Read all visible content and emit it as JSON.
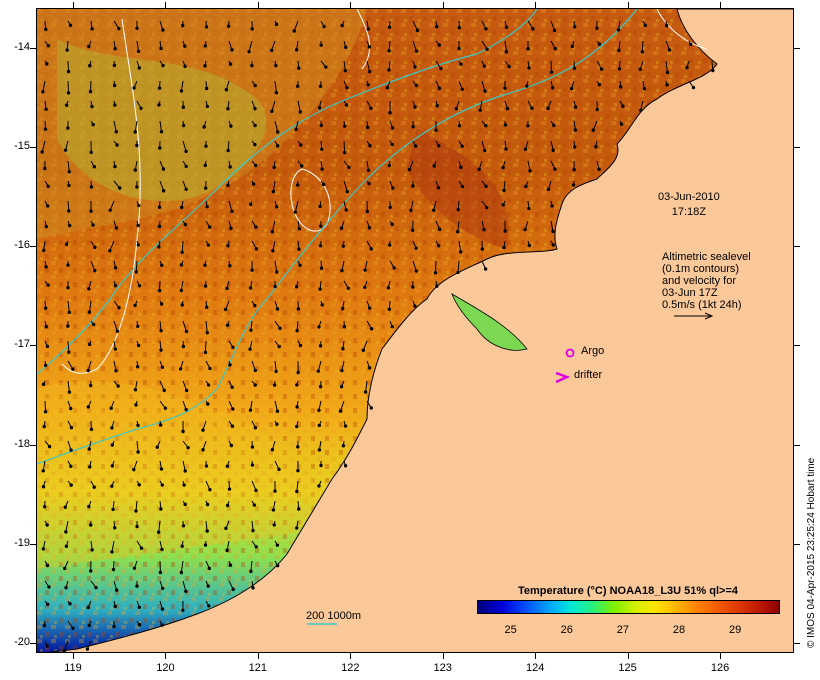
{
  "map": {
    "lat_ticks": [
      "-14",
      "-15",
      "-16",
      "-17",
      "-18",
      "-19",
      "-20"
    ],
    "lon_ticks": [
      "119",
      "120",
      "121",
      "122",
      "123",
      "124",
      "125",
      "126"
    ],
    "lat_range": [
      -20.1,
      -13.6
    ],
    "lon_range": [
      118.6,
      126.8
    ],
    "land_color": "#fbc89a",
    "contour_color": "#ffffff",
    "isobath_color": "#3cc8c8"
  },
  "annotations": {
    "date_line1": "03-Jun-2010",
    "date_line2": "17:18Z",
    "alt_lines": [
      "Altimetric sealevel",
      "(0.1m contours)",
      "and velocity for",
      "03-Jun 17Z",
      "0.5m/s (1kt 24h)"
    ],
    "argo_label": "Argo",
    "drifter_label": "drifter",
    "depth_label": "200  1000m"
  },
  "colorbar": {
    "title": "Temperature (°C) NOAA18_L3U 51% ql>=4",
    "ticks": [
      "25",
      "26",
      "27",
      "28",
      "29"
    ],
    "range": [
      24.4,
      29.8
    ]
  },
  "credit": "© IMOS 04-Apr-2015 23:25:24 Hobart time",
  "markers": {
    "argo_color": "#e000e0",
    "drifter_color": "#e000e0"
  }
}
